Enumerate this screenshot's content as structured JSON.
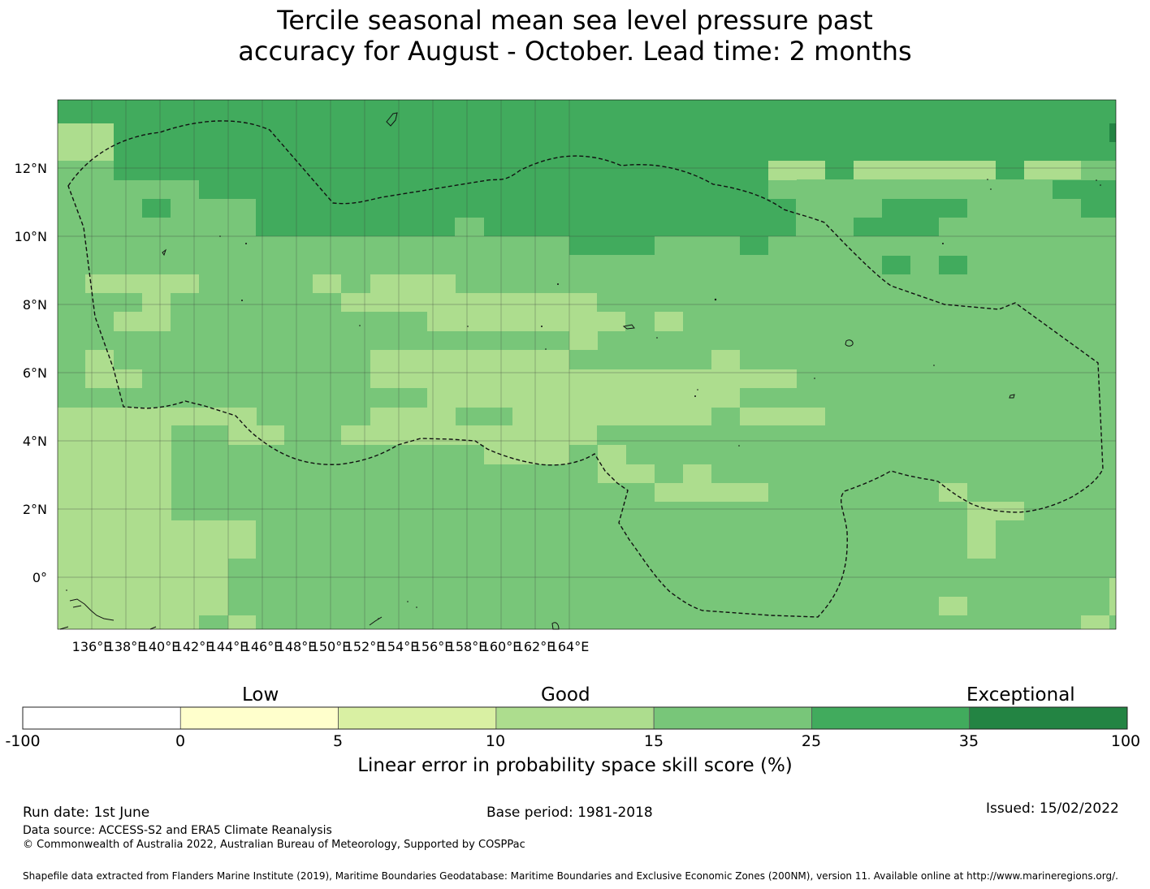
{
  "title": {
    "line1": "Tercile seasonal mean sea level pressure past",
    "line2": "accuracy for August - October. Lead time: 2 months"
  },
  "map": {
    "lon_ticks": [
      "136°E",
      "138°E",
      "140°E",
      "142°E",
      "144°E",
      "146°E",
      "148°E",
      "150°E",
      "152°E",
      "154°E",
      "156°E",
      "158°E",
      "160°E",
      "162°E",
      "164°E"
    ],
    "lat_ticks": [
      "12°N",
      "10°N",
      "8°N",
      "6°N",
      "4°N",
      "2°N",
      "0°"
    ],
    "grid": true
  },
  "colorbar": {
    "group_labels": [
      "Low",
      "Good",
      "Exceptional"
    ],
    "tick_labels": [
      "-100",
      "0",
      "5",
      "10",
      "15",
      "25",
      "35",
      "100"
    ],
    "colors": [
      "#ffffff",
      "#ffffcc",
      "#d9f0a3",
      "#addd8e",
      "#78c679",
      "#41ab5d",
      "#238443"
    ],
    "label": "Linear error in probability space skill score (%)"
  },
  "footer": {
    "run_date": "Run date: 1st June",
    "base_period": "Base period: 1981-2018",
    "issued": "Issued: 15/02/2022",
    "data_source": "Data source: ACCESS-S2 and ERA5 Climate Reanalysis",
    "copyright": "© Commonwealth of Australia 2022, Australian Bureau of Meteorology, Supported by COSPPac",
    "shapefile": "Shapefile data extracted from Flanders Marine Institute (2019), Maritime Boundaries Geodatabase: Maritime Boundaries and Exclusive Economic Zones (200NM), version 11. Available online at http://www.marineregions.org/."
  }
}
